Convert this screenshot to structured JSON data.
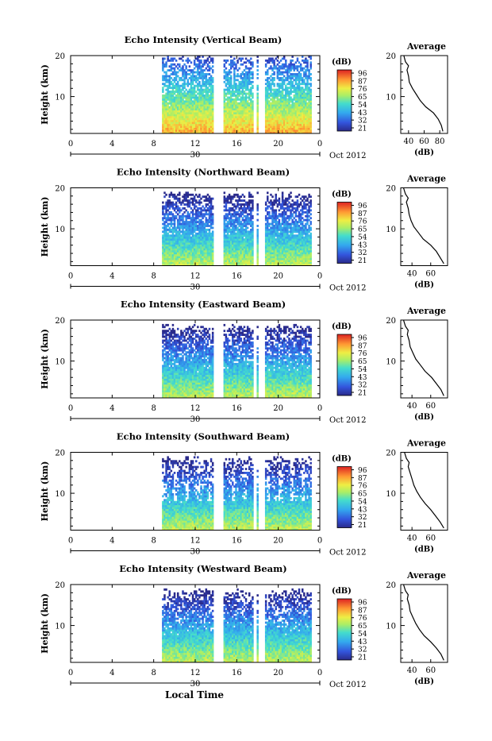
{
  "figure": {
    "xlabel": "Local Time",
    "date_label": "Oct 2012",
    "day_label": "30",
    "avg_title": "Average",
    "avg_xlabel": "(dB)",
    "colorbar_unit": "(dB)",
    "ylabel": "Height (km)"
  },
  "chart_data": [
    {
      "type": "heatmap",
      "title": "Echo Intensity (Vertical Beam)",
      "xlim": [
        0,
        24
      ],
      "xticks": [
        "0",
        "4",
        "8",
        "12",
        "16",
        "20",
        "0"
      ],
      "ylim": [
        1,
        20
      ],
      "yticks": [
        "10",
        "20"
      ],
      "colorbar_ticks": [
        "96",
        "87",
        "76",
        "65",
        "54",
        "43",
        "32",
        "21"
      ],
      "avg_xticks": [
        "40",
        "60",
        "80"
      ],
      "avg_xlim": [
        30,
        90
      ],
      "avg_profile": [
        [
          84,
          1.5
        ],
        [
          82,
          3
        ],
        [
          78,
          4.5
        ],
        [
          72,
          6
        ],
        [
          62,
          7.5
        ],
        [
          55,
          9
        ],
        [
          50,
          10.5
        ],
        [
          45,
          12
        ],
        [
          41,
          13.5
        ],
        [
          40,
          15
        ],
        [
          38,
          16.5
        ],
        [
          40,
          17.5
        ],
        [
          36,
          18.5
        ],
        [
          34,
          20
        ]
      ]
    },
    {
      "type": "heatmap",
      "title": "Echo Intensity (Northward Beam)",
      "xlim": [
        0,
        24
      ],
      "xticks": [
        "0",
        "4",
        "8",
        "12",
        "16",
        "20",
        "0"
      ],
      "ylim": [
        1,
        20
      ],
      "yticks": [
        "10",
        "20"
      ],
      "colorbar_ticks": [
        "96",
        "87",
        "76",
        "65",
        "54",
        "43",
        "32",
        "21"
      ],
      "avg_xticks": [
        "40",
        "60"
      ],
      "avg_xlim": [
        28,
        78
      ],
      "avg_profile": [
        [
          74,
          1.5
        ],
        [
          70,
          3
        ],
        [
          66,
          4.5
        ],
        [
          60,
          6
        ],
        [
          52,
          7.5
        ],
        [
          47,
          9
        ],
        [
          42,
          10.5
        ],
        [
          39,
          12
        ],
        [
          37,
          13.5
        ],
        [
          36,
          15
        ],
        [
          34,
          16.5
        ],
        [
          36,
          17.5
        ],
        [
          33,
          18.5
        ],
        [
          31,
          20
        ]
      ]
    },
    {
      "type": "heatmap",
      "title": "Echo Intensity (Eastward Beam)",
      "xlim": [
        0,
        24
      ],
      "xticks": [
        "0",
        "4",
        "8",
        "12",
        "16",
        "20",
        "0"
      ],
      "ylim": [
        1,
        20
      ],
      "yticks": [
        "10",
        "20"
      ],
      "colorbar_ticks": [
        "96",
        "87",
        "76",
        "65",
        "54",
        "43",
        "32",
        "21"
      ],
      "avg_xticks": [
        "40",
        "60"
      ],
      "avg_xlim": [
        28,
        78
      ],
      "avg_profile": [
        [
          74,
          1.5
        ],
        [
          71,
          3
        ],
        [
          66,
          4.5
        ],
        [
          61,
          6
        ],
        [
          54,
          7.5
        ],
        [
          49,
          9
        ],
        [
          44,
          10.5
        ],
        [
          41,
          12
        ],
        [
          38,
          13.5
        ],
        [
          37,
          15
        ],
        [
          35,
          16.5
        ],
        [
          36,
          17.5
        ],
        [
          33,
          18.5
        ],
        [
          31,
          20
        ]
      ]
    },
    {
      "type": "heatmap",
      "title": "Echo Intensity (Southward Beam)",
      "xlim": [
        0,
        24
      ],
      "xticks": [
        "0",
        "4",
        "8",
        "12",
        "16",
        "20",
        "0"
      ],
      "ylim": [
        1,
        20
      ],
      "yticks": [
        "10",
        "20"
      ],
      "colorbar_ticks": [
        "96",
        "87",
        "76",
        "65",
        "54",
        "43",
        "32",
        "21"
      ],
      "avg_xticks": [
        "40",
        "60"
      ],
      "avg_xlim": [
        28,
        78
      ],
      "avg_profile": [
        [
          74,
          1.5
        ],
        [
          70,
          3
        ],
        [
          65,
          4.5
        ],
        [
          60,
          6
        ],
        [
          54,
          7.5
        ],
        [
          49,
          9
        ],
        [
          45,
          10.5
        ],
        [
          42,
          12
        ],
        [
          40,
          13.5
        ],
        [
          38,
          15
        ],
        [
          36,
          16.5
        ],
        [
          37,
          17.5
        ],
        [
          34,
          18.5
        ],
        [
          32,
          20
        ]
      ]
    },
    {
      "type": "heatmap",
      "title": "Echo Intensity (Westward Beam)",
      "xlim": [
        0,
        24
      ],
      "xticks": [
        "0",
        "4",
        "8",
        "12",
        "16",
        "20",
        "0"
      ],
      "ylim": [
        1,
        20
      ],
      "yticks": [
        "10",
        "20"
      ],
      "colorbar_ticks": [
        "96",
        "87",
        "76",
        "65",
        "54",
        "43",
        "32",
        "21"
      ],
      "avg_xticks": [
        "40",
        "60"
      ],
      "avg_xlim": [
        28,
        78
      ],
      "avg_profile": [
        [
          74,
          1.5
        ],
        [
          71,
          3
        ],
        [
          66,
          4.5
        ],
        [
          60,
          6
        ],
        [
          53,
          7.5
        ],
        [
          48,
          9
        ],
        [
          44,
          10.5
        ],
        [
          41,
          12
        ],
        [
          38,
          13.5
        ],
        [
          37,
          15
        ],
        [
          35,
          16.5
        ],
        [
          36,
          17.5
        ],
        [
          33,
          18.5
        ],
        [
          31,
          20
        ]
      ]
    }
  ]
}
